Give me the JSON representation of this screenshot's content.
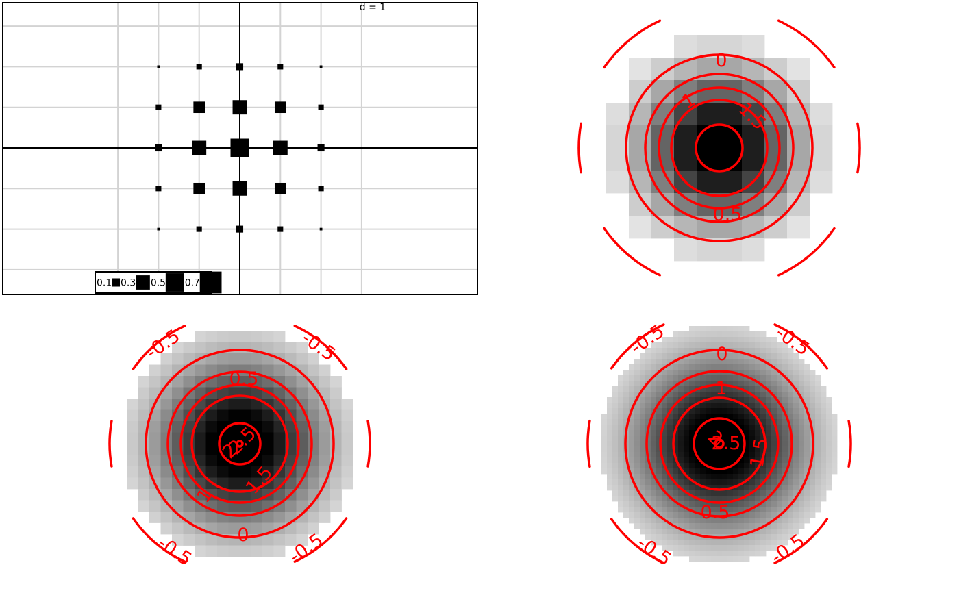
{
  "chart_data": [
    {
      "type": "scatter",
      "description_note": "",
      "d_label": "d = 1",
      "grid_step": 1,
      "xlim": [
        -6,
        6
      ],
      "ylim": [
        -3.6,
        3.6
      ],
      "grid_x": [
        -3,
        -2,
        -1,
        0,
        1,
        2,
        3
      ],
      "grid_y": [
        -3,
        -2,
        -1,
        0,
        1,
        2,
        3
      ],
      "origin_x": 0,
      "origin_y": 0,
      "points": [
        {
          "x": -2,
          "y": 2,
          "v": 0.02
        },
        {
          "x": -1,
          "y": 2,
          "v": 0.09
        },
        {
          "x": 0,
          "y": 2,
          "v": 0.14
        },
        {
          "x": 1,
          "y": 2,
          "v": 0.09
        },
        {
          "x": 2,
          "y": 2,
          "v": 0.02
        },
        {
          "x": -2,
          "y": 1,
          "v": 0.09
        },
        {
          "x": -1,
          "y": 1,
          "v": 0.38
        },
        {
          "x": 0,
          "y": 1,
          "v": 0.6
        },
        {
          "x": 1,
          "y": 1,
          "v": 0.38
        },
        {
          "x": 2,
          "y": 1,
          "v": 0.09
        },
        {
          "x": -2,
          "y": 0,
          "v": 0.14
        },
        {
          "x": -1,
          "y": 0,
          "v": 0.6
        },
        {
          "x": 0,
          "y": 0,
          "v": 1.0
        },
        {
          "x": 1,
          "y": 0,
          "v": 0.6
        },
        {
          "x": 2,
          "y": 0,
          "v": 0.14
        },
        {
          "x": -2,
          "y": -1,
          "v": 0.09
        },
        {
          "x": -1,
          "y": -1,
          "v": 0.38
        },
        {
          "x": 0,
          "y": -1,
          "v": 0.6
        },
        {
          "x": 1,
          "y": -1,
          "v": 0.38
        },
        {
          "x": 2,
          "y": -1,
          "v": 0.09
        },
        {
          "x": -2,
          "y": -2,
          "v": 0.02
        },
        {
          "x": -1,
          "y": -2,
          "v": 0.09
        },
        {
          "x": 0,
          "y": -2,
          "v": 0.14
        },
        {
          "x": 1,
          "y": -2,
          "v": 0.09
        },
        {
          "x": 2,
          "y": -2,
          "v": 0.02
        }
      ],
      "legend": {
        "placement": "bottom-center",
        "entries": [
          {
            "label": "0.1",
            "v": 0.1
          },
          {
            "label": "0.3",
            "v": 0.3
          },
          {
            "label": "0.5",
            "v": 0.5
          },
          {
            "label": "0.7",
            "v": 0.7
          }
        ]
      }
    },
    {
      "type": "heatmap",
      "overlay": "contour",
      "grid_n": 10,
      "sigma": 2.3,
      "levels": [
        {
          "value": -0.5,
          "label": ""
        },
        {
          "value": 0,
          "label": "0"
        },
        {
          "value": 0.5,
          "label": "0.5"
        },
        {
          "value": 1,
          "label": "1"
        },
        {
          "value": 1.5,
          "label": "1.5"
        },
        {
          "value": 2,
          "label": ""
        }
      ]
    },
    {
      "type": "heatmap",
      "overlay": "contour",
      "grid_n": 22,
      "sigma": 5.2,
      "levels": [
        {
          "value": -0.5,
          "label": "-0.5"
        },
        {
          "value": 0,
          "label": "0"
        },
        {
          "value": 0.5,
          "label": "0.5"
        },
        {
          "value": 1,
          "label": "1"
        },
        {
          "value": 1.5,
          "label": "1.5"
        },
        {
          "value": 2,
          "label": "2"
        },
        {
          "value": 2.5,
          "label": "2.5"
        }
      ]
    },
    {
      "type": "heatmap",
      "overlay": "contour",
      "grid_n": 45,
      "sigma": 11,
      "levels": [
        {
          "value": -0.5,
          "label": "-0.5"
        },
        {
          "value": 0,
          "label": "0"
        },
        {
          "value": 0.5,
          "label": "0.5"
        },
        {
          "value": 1,
          "label": "1"
        },
        {
          "value": 1.5,
          "label": "1.5"
        },
        {
          "value": 2,
          "label": "2"
        },
        {
          "value": 2.5,
          "label": "2.5"
        }
      ]
    }
  ],
  "colors": {
    "contour": "#ff0000",
    "grid": "#d3d3d3",
    "ink": "#000000"
  }
}
